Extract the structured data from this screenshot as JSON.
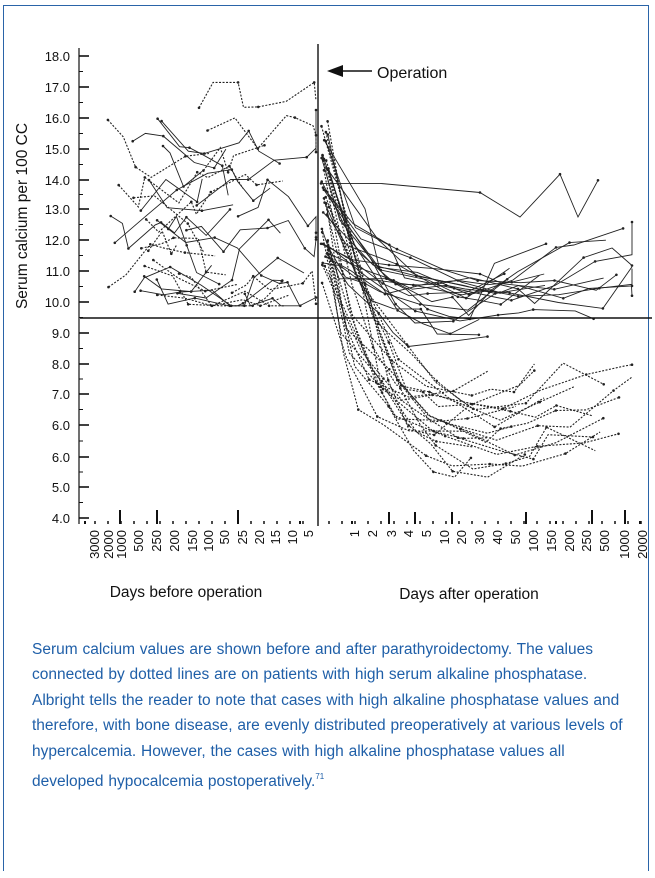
{
  "colors": {
    "frame": "#2a64a8",
    "caption_text": "#1f5fa8",
    "plot_ink": "#222222"
  },
  "chart_data": {
    "type": "line",
    "y_axis_label": "Serum calcium per 100 CC",
    "y_ticks": [
      "4.0",
      "5.0",
      "6.0",
      "6.0",
      "7.0",
      "8.0",
      "9.0",
      "10.0",
      "11.0",
      "12.0",
      "13.0",
      "14.0",
      "15.0",
      "16.0",
      "17.0",
      "18.0"
    ],
    "y_reference_line": 9.5,
    "vertical_marker": "day of operation",
    "annotation": "Operation",
    "before": {
      "xlabel": "Days before operation",
      "tick_labels": [
        "3000",
        "2000",
        "1000",
        "500",
        "250",
        "200",
        "150",
        "100",
        "50",
        "25",
        "20",
        "15",
        "10",
        "5"
      ]
    },
    "after": {
      "xlabel": "Days after operation",
      "tick_labels": [
        "1",
        "2",
        "3",
        "4",
        "5",
        "10",
        "20",
        "30",
        "40",
        "50",
        "100",
        "150",
        "200",
        "250",
        "500",
        "1000",
        "2000"
      ]
    },
    "series_summary": {
      "preoperative_range": [
        9.8,
        17.2
      ],
      "postoperative_range": [
        4.3,
        14.2
      ],
      "line_styles": [
        "solid",
        "dotted"
      ]
    }
  },
  "caption": {
    "text": "Serum calcium values are shown before and after parathyroidectomy. The values connected by dotted lines are on patients with high serum alkaline phosphatase. Albright tells the reader to note that cases with high alkaline phosphatase values and therefore, with bone disease, are evenly distributed preoperatively at various levels of hypercalcemia. However, the cases with high alkaline phosphatase values all developed hypocalcemia postoperatively.",
    "reference": "71"
  }
}
